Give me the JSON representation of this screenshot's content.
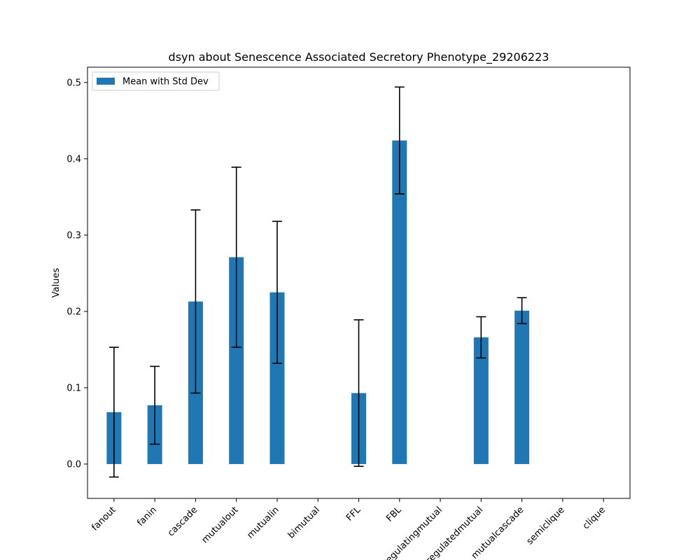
{
  "chart_data": {
    "type": "bar",
    "title": "dsyn about Senescence Associated Secretory Phenotype_29206223",
    "xlabel": "",
    "ylabel": "Values",
    "ylim": [
      -0.045,
      0.52
    ],
    "yticks": [
      0.0,
      0.1,
      0.2,
      0.3,
      0.4,
      0.5
    ],
    "ytick_labels": [
      "0.0",
      "0.1",
      "0.2",
      "0.3",
      "0.4",
      "0.5"
    ],
    "categories": [
      "fanout",
      "fanin",
      "cascade",
      "mutualout",
      "mutualin",
      "bimutual",
      "FFL",
      "FBL",
      "regulatingmutual",
      "regulatedmutual",
      "mutualcascade",
      "semiclique",
      "clique"
    ],
    "series": [
      {
        "name": "Mean with Std Dev",
        "color": "#1f77b4",
        "values": [
          0.068,
          0.077,
          0.213,
          0.271,
          0.225,
          null,
          0.093,
          0.424,
          null,
          0.166,
          0.201,
          null,
          null
        ],
        "errors": [
          0.085,
          0.051,
          0.12,
          0.118,
          0.093,
          null,
          0.096,
          0.07,
          null,
          0.027,
          0.017,
          null,
          null
        ]
      }
    ],
    "legend": "top-left",
    "grid": false
  }
}
